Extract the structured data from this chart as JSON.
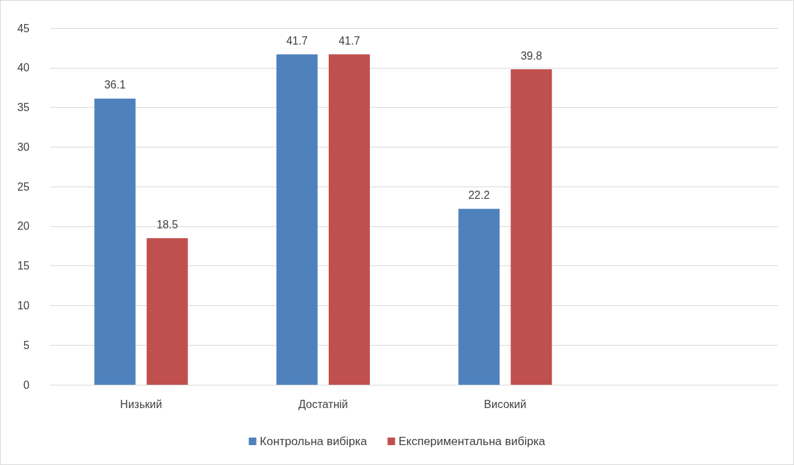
{
  "chart_data": {
    "type": "bar",
    "categories": [
      "Низький",
      "Достатній",
      "Високий",
      null
    ],
    "series": [
      {
        "name": "Контрольна вибірка",
        "color": "#4f81bd",
        "values": [
          36.1,
          41.7,
          22.2,
          null
        ]
      },
      {
        "name": "Експериментальна вибірка",
        "color": "#c0504d",
        "values": [
          18.5,
          41.7,
          39.8,
          null
        ]
      }
    ],
    "ylim": [
      0,
      45
    ],
    "yticks": [
      0,
      5,
      10,
      15,
      20,
      25,
      30,
      35,
      40,
      45
    ],
    "grid": "y",
    "legend": "bottom",
    "data_labels": true
  }
}
